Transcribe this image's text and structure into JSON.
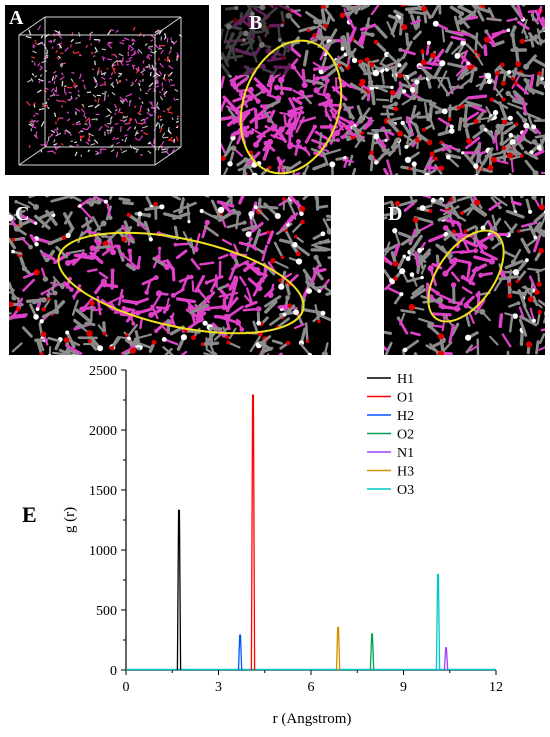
{
  "panels": {
    "a": {
      "label": "A"
    },
    "b": {
      "label": "B"
    },
    "c": {
      "label": "C"
    },
    "d": {
      "label": "D"
    },
    "e": {
      "label": "E"
    }
  },
  "colors": {
    "carbon": "#8c8c8c",
    "oxygen": "#e00000",
    "hydrogen": "#ffffff",
    "highlight": "#e040c8",
    "ellipse": "#f0e020"
  },
  "chart_data": {
    "type": "line",
    "xlabel": "r (Angstrom)",
    "ylabel": "g (r)",
    "xlim": [
      0,
      12
    ],
    "ylim": [
      0,
      2500
    ],
    "xticks": [
      0,
      3,
      6,
      9,
      12
    ],
    "yticks": [
      0,
      500,
      1000,
      1500,
      2000,
      2500
    ],
    "legend_position": "top-right",
    "grid": false,
    "series": [
      {
        "name": "H1",
        "color": "#000000",
        "peak_r": 1.72,
        "peak_g": 1330
      },
      {
        "name": "O1",
        "color": "#ff0000",
        "peak_r": 4.12,
        "peak_g": 2290
      },
      {
        "name": "H2",
        "color": "#0055ff",
        "peak_r": 3.7,
        "peak_g": 290
      },
      {
        "name": "O2",
        "color": "#00a050",
        "peak_r": 7.98,
        "peak_g": 300
      },
      {
        "name": "N1",
        "color": "#a040ff",
        "peak_r": 10.38,
        "peak_g": 185
      },
      {
        "name": "H3",
        "color": "#d09000",
        "peak_r": 6.88,
        "peak_g": 355
      },
      {
        "name": "O3",
        "color": "#00c8c8",
        "peak_r": 10.12,
        "peak_g": 795
      }
    ]
  }
}
